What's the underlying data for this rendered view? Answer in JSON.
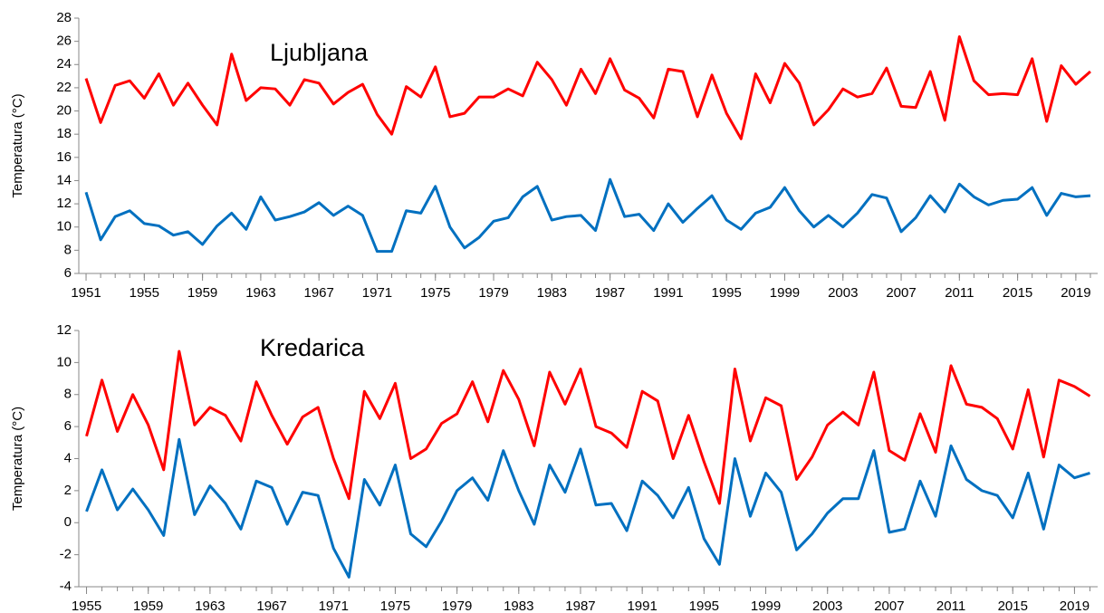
{
  "chart_data": [
    {
      "type": "line",
      "title": "Ljubljana",
      "ylabel": "Temperatura (°C)",
      "x": [
        1951,
        1952,
        1953,
        1954,
        1955,
        1956,
        1957,
        1958,
        1959,
        1960,
        1961,
        1962,
        1963,
        1964,
        1965,
        1966,
        1967,
        1968,
        1969,
        1970,
        1971,
        1972,
        1973,
        1974,
        1975,
        1976,
        1977,
        1978,
        1979,
        1980,
        1981,
        1982,
        1983,
        1984,
        1985,
        1986,
        1987,
        1988,
        1989,
        1990,
        1991,
        1992,
        1993,
        1994,
        1995,
        1996,
        1997,
        1998,
        1999,
        2000,
        2001,
        2002,
        2003,
        2004,
        2005,
        2006,
        2007,
        2008,
        2009,
        2010,
        2011,
        2012,
        2013,
        2014,
        2015,
        2016,
        2017,
        2018,
        2019,
        2020
      ],
      "xlim": [
        1950.5,
        2020.5
      ],
      "xticks": [
        1951,
        1955,
        1959,
        1963,
        1967,
        1971,
        1975,
        1979,
        1983,
        1987,
        1991,
        1995,
        1999,
        2003,
        2007,
        2011,
        2015,
        2019
      ],
      "ylim": [
        6,
        28
      ],
      "yticks": [
        6,
        8,
        10,
        12,
        14,
        16,
        18,
        20,
        22,
        24,
        26,
        28
      ],
      "series": [
        {
          "color": "#ff0000",
          "values": [
            22.8,
            19.0,
            22.2,
            22.6,
            21.1,
            23.2,
            20.5,
            22.4,
            20.5,
            18.8,
            24.9,
            20.9,
            22.0,
            21.9,
            20.5,
            22.7,
            22.4,
            20.6,
            21.6,
            22.3,
            19.7,
            18.0,
            22.1,
            21.2,
            23.8,
            19.5,
            19.8,
            21.2,
            21.2,
            21.9,
            21.3,
            24.2,
            22.7,
            20.5,
            23.6,
            21.5,
            24.5,
            21.8,
            21.1,
            19.4,
            23.6,
            23.4,
            19.5,
            23.1,
            19.8,
            17.6,
            23.2,
            20.7,
            24.1,
            22.4,
            18.8,
            20.1,
            21.9,
            21.2,
            21.5,
            23.7,
            20.4,
            20.3,
            23.4,
            19.2,
            26.4,
            22.6,
            21.4,
            21.5,
            21.4,
            24.5,
            19.1,
            23.9,
            22.3,
            23.4
          ]
        },
        {
          "color": "#0070c0",
          "values": [
            13.0,
            8.9,
            10.9,
            11.4,
            10.3,
            10.1,
            9.3,
            9.6,
            8.5,
            10.1,
            11.2,
            9.8,
            12.6,
            10.6,
            10.9,
            11.3,
            12.1,
            11.0,
            11.8,
            11.0,
            7.9,
            7.9,
            11.4,
            11.2,
            13.5,
            10.0,
            8.2,
            9.1,
            10.5,
            10.8,
            12.6,
            13.5,
            10.6,
            10.9,
            11.0,
            9.7,
            14.1,
            10.9,
            11.1,
            9.7,
            12.0,
            10.4,
            11.6,
            12.7,
            10.6,
            9.8,
            11.2,
            11.7,
            13.4,
            11.4,
            10.0,
            11.0,
            10.0,
            11.2,
            12.8,
            12.5,
            9.6,
            10.8,
            12.7,
            11.3,
            13.7,
            12.6,
            11.9,
            12.3,
            12.4,
            13.4,
            11.0,
            12.9,
            12.6,
            12.7
          ]
        }
      ]
    },
    {
      "type": "line",
      "title": "Kredarica",
      "ylabel": "Temperatura (°C)",
      "x": [
        1955,
        1956,
        1957,
        1958,
        1959,
        1960,
        1961,
        1962,
        1963,
        1964,
        1965,
        1966,
        1967,
        1968,
        1969,
        1970,
        1971,
        1972,
        1973,
        1974,
        1975,
        1976,
        1977,
        1978,
        1979,
        1980,
        1981,
        1982,
        1983,
        1984,
        1985,
        1986,
        1987,
        1988,
        1989,
        1990,
        1991,
        1992,
        1993,
        1994,
        1995,
        1996,
        1997,
        1998,
        1999,
        2000,
        2001,
        2002,
        2003,
        2004,
        2005,
        2006,
        2007,
        2008,
        2009,
        2010,
        2011,
        2012,
        2013,
        2014,
        2015,
        2016,
        2017,
        2018,
        2019,
        2020
      ],
      "xlim": [
        1954.5,
        2020.5
      ],
      "xticks": [
        1955,
        1959,
        1963,
        1967,
        1971,
        1975,
        1979,
        1983,
        1987,
        1991,
        1995,
        1999,
        2003,
        2007,
        2011,
        2015,
        2019
      ],
      "ylim": [
        -4,
        12
      ],
      "yticks": [
        -4,
        -2,
        0,
        2,
        4,
        6,
        8,
        10,
        12
      ],
      "series": [
        {
          "color": "#ff0000",
          "values": [
            5.4,
            8.9,
            5.7,
            8.0,
            6.1,
            3.3,
            10.7,
            6.1,
            7.2,
            6.7,
            5.1,
            8.8,
            6.7,
            4.9,
            6.6,
            7.2,
            4.0,
            1.5,
            8.2,
            6.5,
            8.7,
            4.0,
            4.6,
            6.2,
            6.8,
            8.8,
            6.3,
            9.5,
            7.7,
            4.8,
            9.4,
            7.4,
            9.6,
            6.0,
            5.6,
            4.7,
            8.2,
            7.6,
            4.0,
            6.7,
            3.8,
            1.2,
            9.6,
            5.1,
            7.8,
            7.3,
            2.7,
            4.1,
            6.1,
            6.9,
            6.1,
            9.4,
            4.5,
            3.9,
            6.8,
            4.4,
            9.8,
            7.4,
            7.2,
            6.5,
            4.6,
            8.3,
            4.1,
            8.9,
            8.5,
            7.9
          ]
        },
        {
          "color": "#0070c0",
          "values": [
            0.7,
            3.3,
            0.8,
            2.1,
            0.8,
            -0.8,
            5.2,
            0.5,
            2.3,
            1.2,
            -0.4,
            2.6,
            2.2,
            -0.1,
            1.9,
            1.7,
            -1.6,
            -3.4,
            2.7,
            1.1,
            3.6,
            -0.7,
            -1.5,
            0.1,
            2.0,
            2.8,
            1.4,
            4.5,
            2.0,
            -0.1,
            3.6,
            1.9,
            4.6,
            1.1,
            1.2,
            -0.5,
            2.6,
            1.7,
            0.3,
            2.2,
            -1.0,
            -2.6,
            4.0,
            0.4,
            3.1,
            1.9,
            -1.7,
            -0.7,
            0.6,
            1.5,
            1.5,
            4.5,
            -0.6,
            -0.4,
            2.6,
            0.4,
            4.8,
            2.7,
            2.0,
            1.7,
            0.3,
            3.1,
            -0.4,
            3.6,
            2.8,
            3.1
          ]
        }
      ]
    }
  ]
}
